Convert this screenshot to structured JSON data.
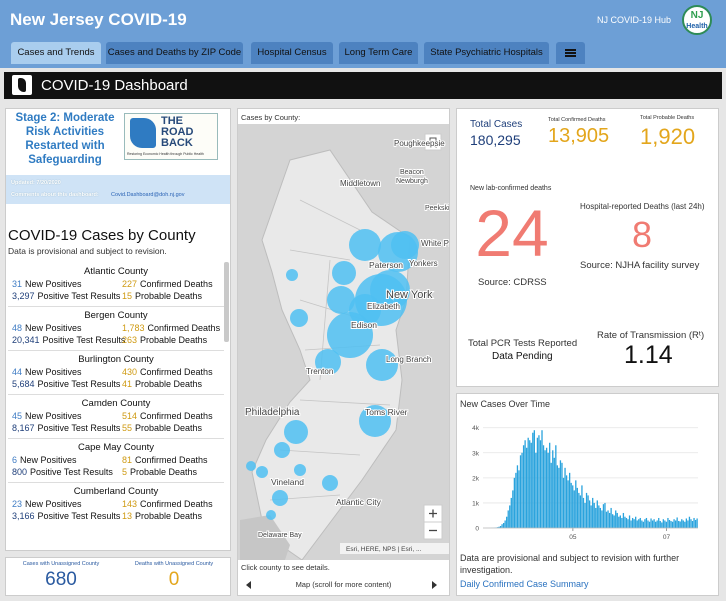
{
  "header": {
    "title": "New Jersey COVID-19",
    "hub_link": "NJ COVID-19 Hub",
    "logo": [
      "NJ",
      "Health"
    ]
  },
  "tabs": [
    "Cases and Trends",
    "Cases and Deaths by ZIP Code",
    "Hospital Census",
    "Long Term Care",
    "State Psychiatric Hospitals"
  ],
  "dashboard_title": "COVID-19 Dashboard",
  "stage": {
    "text": "Stage 2: Moderate Risk Activities Restarted with Safeguarding",
    "logo_title": [
      "THE",
      "ROAD",
      "BACK"
    ],
    "logo_tagline": "Restoring Economic Health through Public Health"
  },
  "updated": "Updated: 7/20/2020",
  "comments": {
    "label": "Comments about this dashboard:",
    "email": "Covid.Dashboard@doh.nj.gov"
  },
  "county_list": {
    "title": "COVID-19 Cases by County",
    "note": "Data is provisional and subject to revision.",
    "labels": {
      "new_positives": "New Positives",
      "confirmed_deaths": "Confirmed Deaths",
      "positive_tests": "Positive Test Results",
      "probable_deaths": "Probable Deaths"
    },
    "counties": [
      {
        "name": "Atlantic County",
        "new_positives": "31",
        "confirmed_deaths": "227",
        "positive_tests": "3,297",
        "probable_deaths": "15"
      },
      {
        "name": "Bergen County",
        "new_positives": "48",
        "confirmed_deaths": "1,783",
        "positive_tests": "20,341",
        "probable_deaths": "263"
      },
      {
        "name": "Burlington County",
        "new_positives": "44",
        "confirmed_deaths": "430",
        "positive_tests": "5,684",
        "probable_deaths": "41"
      },
      {
        "name": "Camden County",
        "new_positives": "45",
        "confirmed_deaths": "514",
        "positive_tests": "8,167",
        "probable_deaths": "55"
      },
      {
        "name": "Cape May County",
        "new_positives": "6",
        "confirmed_deaths": "81",
        "positive_tests": "800",
        "probable_deaths": "5"
      },
      {
        "name": "Cumberland County",
        "new_positives": "23",
        "confirmed_deaths": "143",
        "positive_tests": "3,166",
        "probable_deaths": "13"
      }
    ]
  },
  "unassigned": {
    "cases_label": "Cases with Unassigned County",
    "cases": "680",
    "deaths_label": "Deaths with Unassigned County",
    "deaths": "0"
  },
  "map": {
    "title": "Cases by County:",
    "places": [
      "Poughkeepsie",
      "Middletown",
      "Beacon",
      "Newburgh",
      "Peekskill",
      "White Plains",
      "Yonkers",
      "Paterson",
      "New York",
      "Elizabeth",
      "Edison",
      "Trenton",
      "Long Branch",
      "Toms River",
      "Philadelphia",
      "Vineland",
      "Atlantic City",
      "Delaware Bay"
    ],
    "attribution": "Esri, HERE, NPS | Esri, ...",
    "hint": "Click county to see details.",
    "footer": "Map (scroll for more content)"
  },
  "stats": {
    "total_cases": {
      "label": "Total Cases",
      "value": "180,295"
    },
    "confirmed_deaths": {
      "label": "Total Confirmed Deaths",
      "value": "13,905"
    },
    "probable_deaths": {
      "label": "Total Probable Deaths",
      "value": "1,920"
    },
    "new_deaths": {
      "label": "New lab-confirmed deaths",
      "value": "24",
      "source": "Source: CDRSS"
    },
    "hospital_deaths": {
      "label": "Hospital-reported Deaths (last 24h)",
      "value": "8",
      "source": "Source: NJHA facility survey"
    },
    "pcr": {
      "label": "Total PCR Tests Reported",
      "value": "Data Pending"
    },
    "rt": {
      "label": "Rate of Transmission (Rᵗ)",
      "value": "1.14"
    }
  },
  "chart_data": {
    "type": "bar",
    "title": "New Cases Over Time",
    "color": "#2aa3dd",
    "values": [
      0,
      0,
      1,
      1,
      2,
      5,
      6,
      10,
      20,
      30,
      50,
      80,
      150,
      200,
      300,
      450,
      700,
      900,
      1200,
      1500,
      2000,
      2200,
      2500,
      2300,
      2900,
      3000,
      3300,
      3500,
      3200,
      3600,
      3500,
      3400,
      3800,
      3900,
      3000,
      3600,
      3700,
      3500,
      3900,
      3300,
      3100,
      3200,
      3000,
      3400,
      2600,
      3100,
      2800,
      3300,
      2500,
      2400,
      2700,
      2600,
      2000,
      2400,
      2100,
      1900,
      2200,
      1800,
      1700,
      1500,
      1900,
      1600,
      1400,
      1300,
      1700,
      1200,
      1000,
      1400,
      1300,
      1100,
      900,
      1200,
      1000,
      800,
      1100,
      900,
      800,
      700,
      950,
      1000,
      650,
      700,
      600,
      800,
      550,
      500,
      700,
      600,
      450,
      500,
      400,
      600,
      450,
      400,
      350,
      500,
      300,
      400,
      350,
      450,
      300,
      350,
      400,
      300,
      250,
      350,
      400,
      300,
      250,
      380,
      300,
      350,
      250,
      300,
      400,
      280,
      220,
      350,
      300,
      250,
      400,
      320,
      280,
      250,
      350,
      300,
      420,
      280,
      260,
      350,
      300,
      250,
      380,
      300,
      450,
      350,
      280,
      400,
      320,
      380
    ],
    "ylim": [
      0,
      4200
    ],
    "yticks": [
      0,
      {
        "value": 1000,
        "label": "1k"
      },
      {
        "value": 2000,
        "label": "2k"
      },
      {
        "value": 3000,
        "label": "3k"
      },
      {
        "value": 4000,
        "label": "4k"
      }
    ],
    "xticks": [
      {
        "value": 58,
        "label": "05"
      },
      {
        "value": 119,
        "label": "07"
      }
    ],
    "grid": true,
    "note": "Data are provisional and subject to revision with further investigation.",
    "link": "Daily Confirmed Case Summary"
  }
}
